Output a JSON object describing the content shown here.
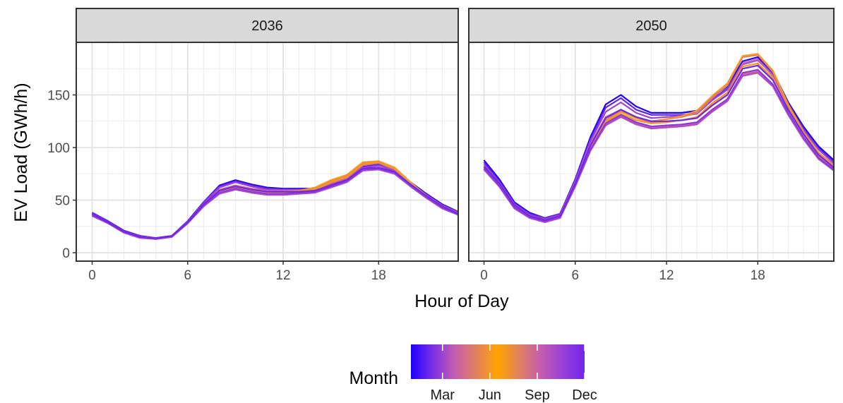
{
  "chart_data": {
    "type": "line",
    "facet_labels": [
      "2036",
      "2050"
    ],
    "xlabel": "Hour of Day",
    "ylabel": "EV Load (GWh/h)",
    "x_ticks": [
      0,
      6,
      12,
      18
    ],
    "y_ticks": [
      0,
      50,
      100,
      150
    ],
    "xlim": [
      -1,
      23
    ],
    "ylim": [
      -8,
      200
    ],
    "legend": {
      "title": "Month",
      "position": "bottom",
      "ticks": [
        "Mar",
        "Jun",
        "Sep",
        "Dec"
      ],
      "gradient": [
        "#1f00ff",
        "#7a30e6",
        "#c45cb0",
        "#e08060",
        "#ffa500",
        "#e08060",
        "#c45cb0",
        "#9a3ed8",
        "#6e28e8"
      ]
    },
    "grid": true,
    "x": [
      0,
      1,
      2,
      3,
      4,
      5,
      6,
      7,
      8,
      9,
      10,
      11,
      12,
      13,
      14,
      15,
      16,
      17,
      18,
      19,
      20,
      21,
      22,
      23
    ],
    "panels": [
      {
        "label": "2036",
        "series": [
          {
            "month": 1,
            "values": [
              38,
              30,
              21,
              16,
              14,
              16,
              30,
              48,
              64,
              69,
              65,
              62,
              61,
              61,
              61,
              66,
              71,
              82,
              84,
              79,
              67,
              56,
              46,
              39
            ]
          },
          {
            "month": 2,
            "values": [
              38,
              30,
              21,
              16,
              14,
              16,
              30,
              48,
              63,
              68,
              64,
              61,
              60,
              60,
              60,
              66,
              71,
              81,
              83,
              78,
              66,
              55,
              45,
              39
            ]
          },
          {
            "month": 3,
            "values": [
              37,
              29,
              20,
              15,
              14,
              16,
              29,
              47,
              62,
              67,
              63,
              60,
              60,
              60,
              60,
              65,
              70,
              81,
              83,
              78,
              66,
              55,
              45,
              38
            ]
          },
          {
            "month": 4,
            "values": [
              36,
              29,
              20,
              15,
              14,
              16,
              29,
              46,
              60,
              64,
              61,
              59,
              59,
              59,
              60,
              66,
              71,
              83,
              85,
              79,
              66,
              54,
              44,
              37
            ]
          },
          {
            "month": 5,
            "values": [
              36,
              28,
              20,
              15,
              14,
              16,
              29,
              45,
              59,
              63,
              60,
              58,
              58,
              59,
              61,
              68,
              73,
              85,
              87,
              81,
              67,
              54,
              44,
              37
            ]
          },
          {
            "month": 6,
            "values": [
              36,
              28,
              20,
              15,
              14,
              16,
              29,
              45,
              58,
              62,
              59,
              57,
              58,
              59,
              62,
              69,
              74,
              86,
              87,
              81,
              67,
              54,
              44,
              37
            ]
          },
          {
            "month": 7,
            "values": [
              36,
              28,
              20,
              15,
              14,
              16,
              29,
              45,
              58,
              62,
              59,
              57,
              57,
              58,
              60,
              67,
              72,
              84,
              86,
              80,
              66,
              54,
              44,
              37
            ]
          },
          {
            "month": 8,
            "values": [
              35,
              28,
              19,
              15,
              13,
              15,
              28,
              44,
              57,
              61,
              58,
              56,
              56,
              57,
              58,
              63,
              68,
              79,
              81,
              76,
              64,
              53,
              43,
              36
            ]
          },
          {
            "month": 9,
            "values": [
              35,
              28,
              19,
              15,
              13,
              15,
              28,
              44,
              57,
              61,
              58,
              56,
              56,
              57,
              58,
              63,
              68,
              78,
              80,
              76,
              64,
              53,
              43,
              36
            ]
          },
          {
            "month": 10,
            "values": [
              35,
              28,
              19,
              14,
              13,
              15,
              28,
              44,
              56,
              60,
              57,
              55,
              55,
              56,
              57,
              62,
              67,
              78,
              79,
              75,
              63,
              52,
              42,
              36
            ]
          },
          {
            "month": 11,
            "values": [
              36,
              28,
              20,
              15,
              13,
              15,
              28,
              45,
              57,
              61,
              58,
              56,
              56,
              57,
              58,
              63,
              68,
              79,
              80,
              76,
              64,
              53,
              43,
              36
            ]
          },
          {
            "month": 12,
            "values": [
              37,
              29,
              20,
              15,
              14,
              16,
              29,
              46,
              59,
              63,
              60,
              58,
              58,
              58,
              59,
              64,
              69,
              80,
              81,
              77,
              65,
              54,
              44,
              37
            ]
          }
        ]
      },
      {
        "label": "2050",
        "series": [
          {
            "month": 1,
            "values": [
              88,
              70,
              48,
              38,
              33,
              37,
              70,
              110,
              141,
              150,
              139,
              133,
              133,
              133,
              135,
              148,
              158,
              182,
              186,
              172,
              143,
              120,
              101,
              88
            ]
          },
          {
            "month": 2,
            "values": [
              86,
              68,
              47,
              37,
              33,
              37,
              69,
              108,
              138,
              147,
              136,
              131,
              131,
              131,
              133,
              146,
              156,
              180,
              184,
              170,
              141,
              118,
              99,
              86
            ]
          },
          {
            "month": 3,
            "values": [
              84,
              67,
              46,
              36,
              32,
              36,
              68,
              106,
              134,
              143,
              133,
              128,
              129,
              130,
              132,
              145,
              155,
              179,
              183,
              169,
              140,
              117,
              98,
              85
            ]
          },
          {
            "month": 4,
            "values": [
              82,
              66,
              45,
              35,
              31,
              35,
              67,
              103,
              129,
              136,
              128,
              124,
              125,
              126,
              128,
              142,
              152,
              180,
              184,
              168,
              138,
              114,
              95,
              83
            ]
          },
          {
            "month": 5,
            "values": [
              81,
              65,
              44,
              35,
              31,
              35,
              66,
              101,
              126,
              135,
              129,
              125,
              127,
              129,
              133,
              147,
              159,
              186,
              188,
              172,
              140,
              115,
              95,
              82
            ]
          },
          {
            "month": 6,
            "values": [
              81,
              65,
              44,
              35,
              31,
              35,
              66,
              100,
              125,
              134,
              128,
              125,
              127,
              130,
              135,
              149,
              161,
              187,
              189,
              173,
              141,
              115,
              95,
              82
            ]
          },
          {
            "month": 7,
            "values": [
              81,
              65,
              44,
              35,
              31,
              35,
              66,
              100,
              124,
              132,
              126,
              123,
              124,
              126,
              129,
              142,
              152,
              177,
              180,
              166,
              137,
              113,
              93,
              81
            ]
          },
          {
            "month": 8,
            "values": [
              80,
              64,
              43,
              34,
              30,
              34,
              65,
              99,
              123,
              131,
              124,
              120,
              121,
              122,
              124,
              136,
              146,
              170,
              173,
              160,
              133,
              110,
              91,
              79
            ]
          },
          {
            "month": 9,
            "values": [
              79,
              63,
              43,
              34,
              30,
              34,
              64,
              98,
              122,
              130,
              123,
              119,
              120,
              121,
              123,
              135,
              145,
              169,
              172,
              159,
              132,
              109,
              90,
              78
            ]
          },
          {
            "month": 10,
            "values": [
              79,
              63,
              42,
              33,
              29,
              33,
              63,
              97,
              121,
              129,
              122,
              118,
              119,
              120,
              122,
              134,
              144,
              168,
              171,
              158,
              131,
              108,
              89,
              78
            ]
          },
          {
            "month": 11,
            "values": [
              80,
              64,
              43,
              34,
              30,
              34,
              64,
              98,
              123,
              131,
              124,
              120,
              121,
              122,
              124,
              136,
              146,
              171,
              174,
              160,
              133,
              110,
              90,
              79
            ]
          },
          {
            "month": 12,
            "values": [
              82,
              66,
              45,
              35,
              31,
              35,
              66,
              102,
              128,
              136,
              129,
              125,
              125,
              126,
              128,
              140,
              150,
              175,
              178,
              164,
              136,
              113,
              93,
              81
            ]
          }
        ]
      }
    ]
  }
}
